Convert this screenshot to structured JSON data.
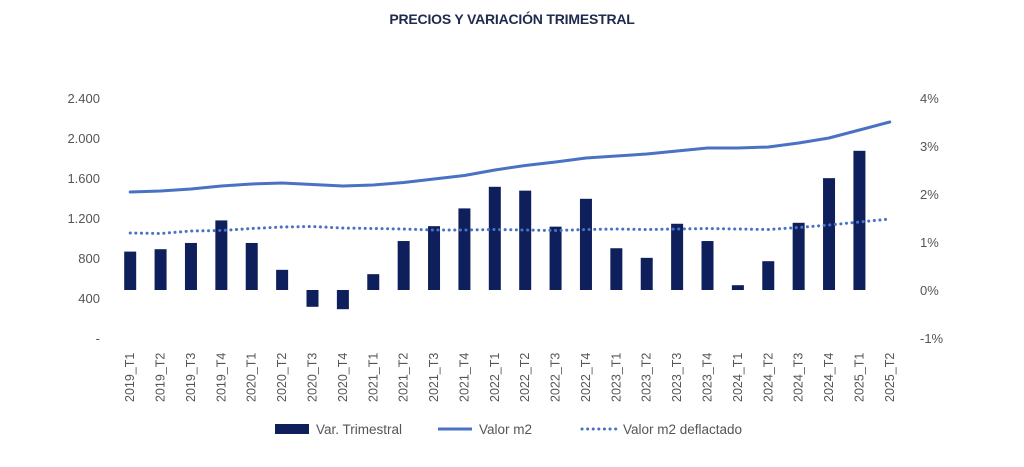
{
  "chart_data": {
    "type": "bar+line",
    "title": "PRECIOS Y VARIACIÓN TRIMESTRAL",
    "categories": [
      "2019_T1",
      "2019_T2",
      "2019_T3",
      "2019_T4",
      "2020_T1",
      "2020_T2",
      "2020_T3",
      "2020_T4",
      "2021_T1",
      "2021_T2",
      "2021_T3",
      "2021_T4",
      "2022_T1",
      "2022_T2",
      "2022_T3",
      "2022_T4",
      "2023_T1",
      "2023_T2",
      "2023_T3",
      "2023_T4",
      "2024_T1",
      "2024_T2",
      "2024_T3",
      "2024_T4",
      "2025_T1",
      "2025_T2"
    ],
    "left_axis": {
      "ticks": [
        "2.400",
        "2.000",
        "1.600",
        "1.200",
        "800",
        "400",
        "-"
      ],
      "ylim": [
        0,
        2400
      ]
    },
    "right_axis": {
      "ticks": [
        "4%",
        "3%",
        "2%",
        "1%",
        "0%",
        "-1%"
      ],
      "ylim": [
        -1,
        4
      ]
    },
    "series": [
      {
        "name": "Var. Trimestral",
        "kind": "bar",
        "axis": "right",
        "color": "#0f1f5c",
        "values": [
          0.8,
          0.85,
          0.98,
          1.45,
          0.98,
          0.42,
          -0.35,
          -0.4,
          0.33,
          1.02,
          1.33,
          1.7,
          2.15,
          2.07,
          1.32,
          1.9,
          0.87,
          0.67,
          1.38,
          1.02,
          0.1,
          0.6,
          1.4,
          2.33,
          2.9,
          null
        ]
      },
      {
        "name": "Valor m2",
        "kind": "line",
        "axis": "left",
        "color": "#4a72c4",
        "values": [
          1460,
          1470,
          1490,
          1520,
          1540,
          1550,
          1535,
          1520,
          1530,
          1555,
          1590,
          1625,
          1680,
          1725,
          1760,
          1800,
          1820,
          1840,
          1870,
          1900,
          1900,
          1910,
          1950,
          2000,
          2080,
          2160
        ]
      },
      {
        "name": "Valor m2 deflactado",
        "kind": "line",
        "dotted": true,
        "axis": "left",
        "color": "#4a72c4",
        "values": [
          1050,
          1045,
          1070,
          1075,
          1095,
          1110,
          1115,
          1100,
          1095,
          1090,
          1080,
          1080,
          1085,
          1080,
          1075,
          1085,
          1090,
          1085,
          1090,
          1095,
          1090,
          1085,
          1105,
          1130,
          1160,
          1190
        ]
      }
    ],
    "legend": {
      "position": "bottom"
    },
    "grid": false
  }
}
